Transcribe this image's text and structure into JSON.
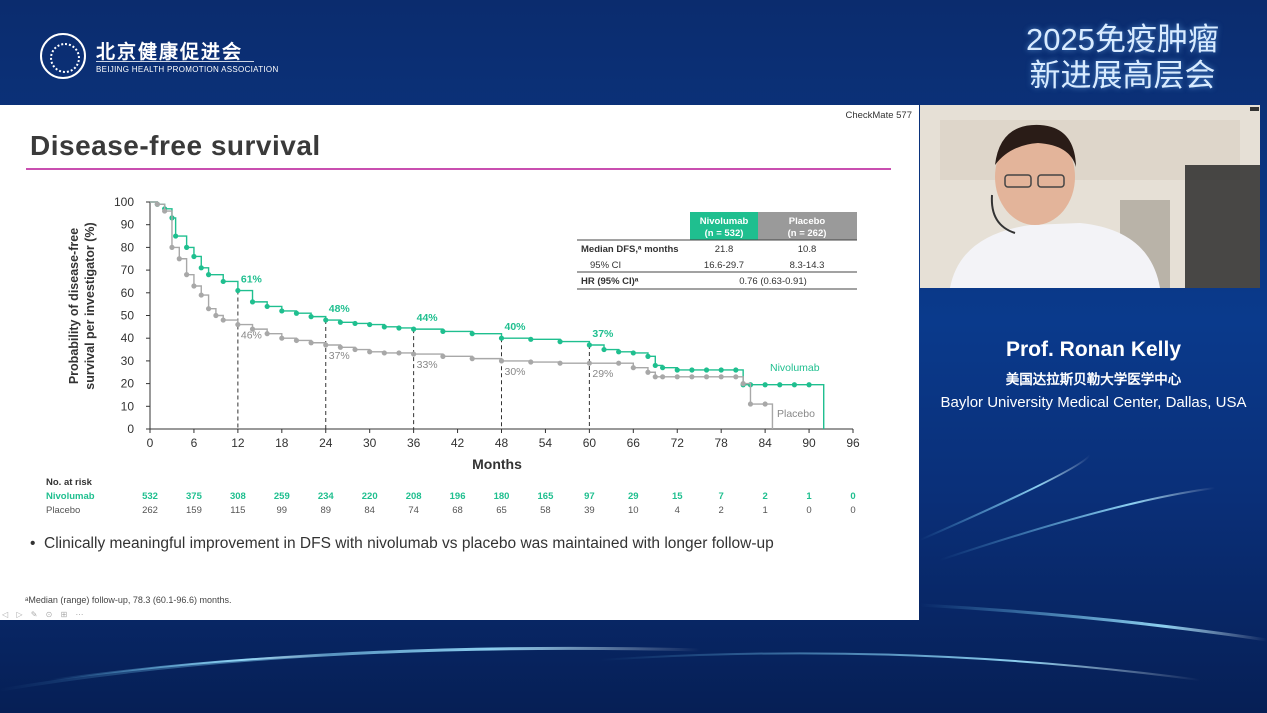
{
  "header": {
    "org_name_cn": "北京健康促进会",
    "org_name_en": "BEIJING HEALTH PROMOTION ASSOCIATION",
    "event_line1": "2025免疫肿瘤",
    "event_line2": "新进展高层会"
  },
  "slide": {
    "study_tag": "CheckMate 577",
    "title": "Disease-free survival",
    "bullet": "Clinically meaningful improvement in DFS with nivolumab vs placebo was maintained with longer follow-up",
    "footnote": "ᵃMedian (range) follow-up, 78.3 (60.1-96.6) months.",
    "title_line_color": "#c94fb0"
  },
  "speaker": {
    "name": "Prof. Ronan Kelly",
    "affiliation_cn": "美国达拉斯贝勒大学医学中心",
    "affiliation_en": "Baylor University Medical Center, Dallas, USA"
  },
  "chart_data": {
    "type": "line",
    "ylabel_line1": "Probability of disease-free",
    "ylabel_line2": "survival per investigator (%)",
    "xlabel": "Months",
    "xlim": [
      0,
      96
    ],
    "ylim": [
      0,
      100
    ],
    "xticks": [
      0,
      6,
      12,
      18,
      24,
      30,
      36,
      42,
      48,
      54,
      60,
      66,
      72,
      78,
      84,
      90,
      96
    ],
    "yticks": [
      0,
      10,
      20,
      30,
      40,
      50,
      60,
      70,
      80,
      90,
      100
    ],
    "colors": {
      "nivolumab": "#1fbf8f",
      "placebo": "#a8a8a8",
      "placebo_header": "#9a9a9a"
    },
    "series": [
      {
        "name": "Nivolumab",
        "x": [
          0,
          1,
          2,
          3,
          3.5,
          5,
          6,
          7,
          8,
          10,
          12,
          14,
          16,
          18,
          20,
          22,
          24,
          26,
          28,
          30,
          32,
          34,
          36,
          40,
          44,
          48,
          52,
          56,
          60,
          62,
          64,
          66,
          68,
          69,
          70,
          72,
          74,
          76,
          78,
          80,
          81,
          82,
          84,
          86,
          88,
          90,
          92
        ],
        "y": [
          100,
          99,
          97,
          93,
          85,
          80,
          76,
          71,
          68,
          65,
          61,
          56,
          54,
          52,
          51,
          49.5,
          48,
          47,
          46.5,
          46,
          45,
          44.5,
          44,
          43,
          42,
          40,
          39.5,
          38.5,
          37,
          35,
          34,
          33.5,
          32,
          28,
          27,
          26,
          26,
          26,
          26,
          26,
          19.5,
          19.5,
          19.5,
          19.5,
          19.5,
          19.5,
          0
        ]
      },
      {
        "name": "Placebo",
        "x": [
          0,
          1,
          2,
          3,
          4,
          5,
          6,
          7,
          8,
          9,
          10,
          12,
          14,
          16,
          18,
          20,
          22,
          24,
          26,
          28,
          30,
          32,
          34,
          36,
          40,
          44,
          48,
          52,
          56,
          60,
          64,
          66,
          68,
          69,
          70,
          72,
          74,
          76,
          78,
          80,
          81,
          82,
          84,
          85
        ],
        "y": [
          100,
          99,
          96,
          80,
          75,
          68,
          63,
          59,
          53,
          50,
          48,
          46,
          44,
          42,
          40,
          39,
          38,
          37,
          36,
          35,
          34,
          33.5,
          33.5,
          33,
          32,
          31,
          30,
          29.5,
          29,
          29,
          29,
          27,
          25,
          23,
          23,
          23,
          23,
          23,
          23,
          23,
          20,
          11,
          11,
          0
        ]
      }
    ],
    "annotations": [
      {
        "month": 12,
        "nivolumab": "61%",
        "placebo": "46%"
      },
      {
        "month": 24,
        "nivolumab": "48%",
        "placebo": "37%"
      },
      {
        "month": 36,
        "nivolumab": "44%",
        "placebo": "33%"
      },
      {
        "month": 48,
        "nivolumab": "40%",
        "placebo": "30%"
      },
      {
        "month": 60,
        "nivolumab": "37%",
        "placebo": "29%"
      }
    ],
    "end_labels": [
      "Nivolumab",
      "Placebo"
    ],
    "stats_table": {
      "headers": [
        "Nivolumab",
        "Placebo"
      ],
      "header_n": [
        "(n = 532)",
        "(n = 262)"
      ],
      "rows": [
        {
          "label": "Median DFS,ᵃ months",
          "nivo": "21.8",
          "pbo": "10.8"
        },
        {
          "label": "95% CI",
          "nivo": "16.6-29.7",
          "pbo": "8.3-14.3"
        },
        {
          "label": "HR (95% CI)ᵃ",
          "merged": "0.76 (0.63-0.91)"
        }
      ]
    },
    "at_risk": {
      "title": "No. at risk",
      "nivolumab_label": "Nivolumab",
      "placebo_label": "Placebo",
      "nivolumab": [
        532,
        375,
        308,
        259,
        234,
        220,
        208,
        196,
        180,
        165,
        97,
        29,
        15,
        7,
        2,
        1,
        0
      ],
      "placebo": [
        262,
        159,
        115,
        99,
        89,
        84,
        74,
        68,
        65,
        58,
        39,
        10,
        4,
        2,
        1,
        0,
        0
      ]
    }
  }
}
